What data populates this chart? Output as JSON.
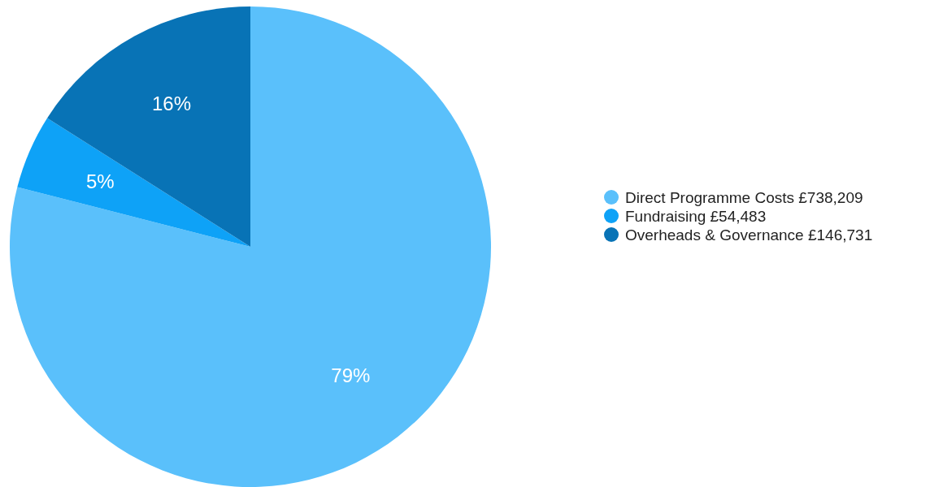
{
  "chart_data": {
    "type": "pie",
    "categories": [
      "Direct Programme Costs £738,209",
      "Fundraising £54,483",
      "Overheads & Governance £146,731"
    ],
    "values": [
      79,
      5,
      16
    ],
    "colors": [
      "#5ac0fb",
      "#0ea2f7",
      "#0873b6"
    ],
    "value_labels": [
      "79%",
      "5%",
      "16%"
    ],
    "legend": "right"
  }
}
